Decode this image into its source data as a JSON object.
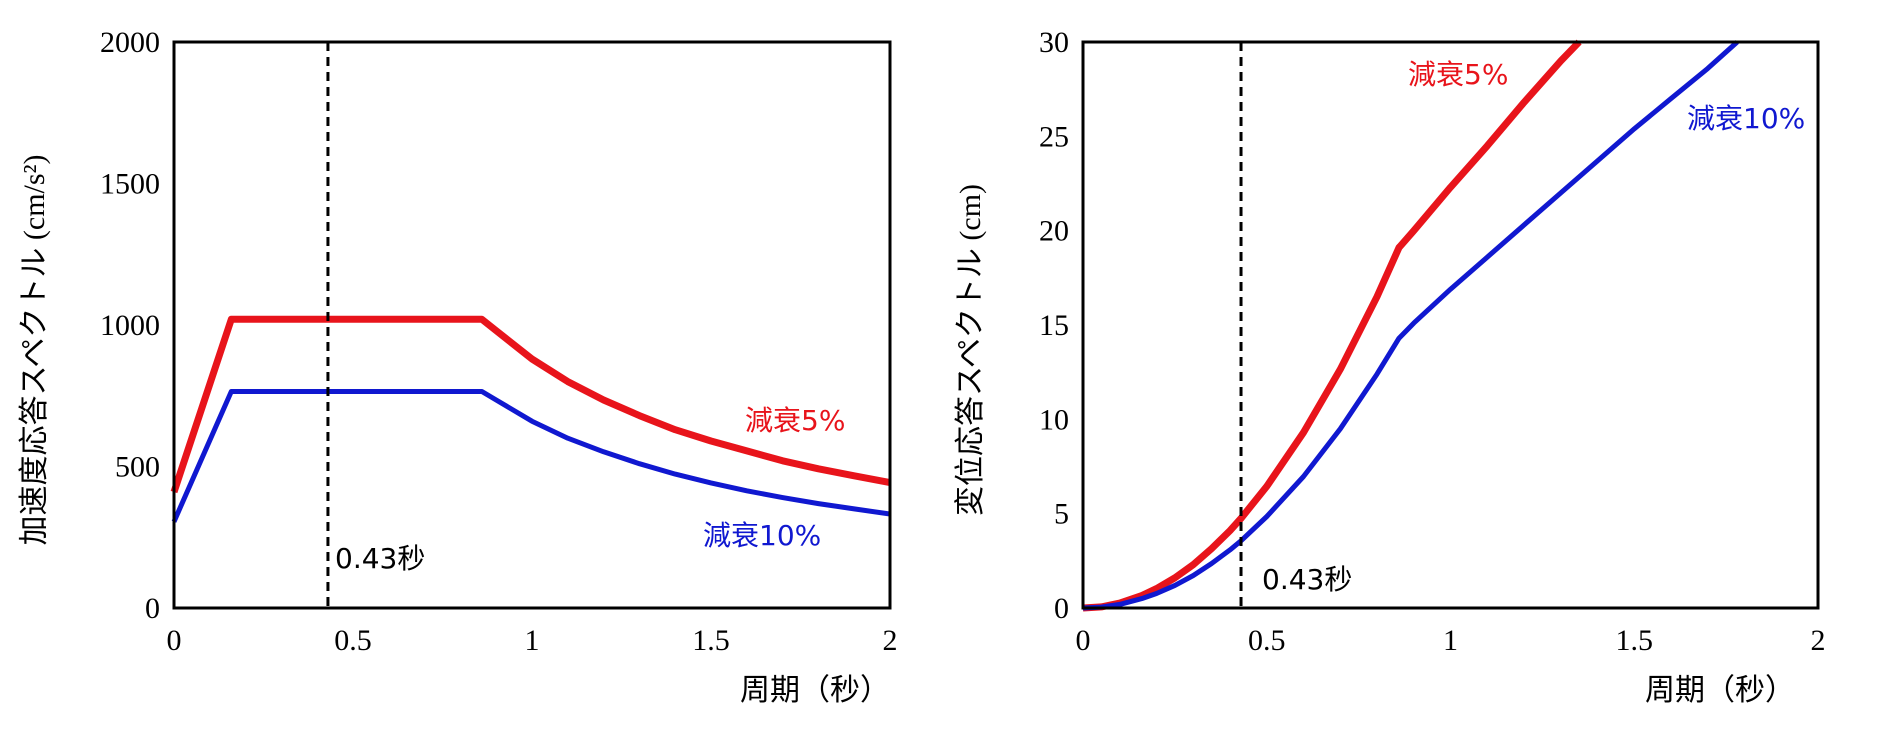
{
  "colors": {
    "red": "#e8141b",
    "blue": "#1018d0",
    "black": "#000000"
  },
  "chart_data": [
    {
      "type": "line",
      "title": "",
      "xlabel": "周期（秒）",
      "ylabel": "加速度応答スペクトル (cm/s²)",
      "xlim": [
        0,
        2
      ],
      "ylim": [
        0,
        2000
      ],
      "xticks": [
        0,
        0.5,
        1,
        1.5,
        2
      ],
      "xtick_labels": [
        "0",
        "0.5",
        "1",
        "1.5",
        "2"
      ],
      "yticks": [
        0,
        500,
        1000,
        1500,
        2000
      ],
      "ytick_labels": [
        "0",
        "500",
        "1000",
        "1500",
        "2000"
      ],
      "grid": false,
      "series": [
        {
          "name": "減衰5%",
          "color": "#e8141b",
          "points": [
            [
              0,
              410
            ],
            [
              0.16,
              1020
            ],
            [
              0.86,
              1020
            ],
            [
              0.9,
              980
            ],
            [
              1.0,
              880
            ],
            [
              1.1,
              800
            ],
            [
              1.2,
              735
            ],
            [
              1.3,
              680
            ],
            [
              1.4,
              630
            ],
            [
              1.5,
              590
            ],
            [
              1.6,
              555
            ],
            [
              1.7,
              520
            ],
            [
              1.8,
              492
            ],
            [
              1.9,
              467
            ],
            [
              2.0,
              443
            ]
          ]
        },
        {
          "name": "減衰10%",
          "color": "#1018d0",
          "points": [
            [
              0,
              305
            ],
            [
              0.16,
              765
            ],
            [
              0.86,
              765
            ],
            [
              0.9,
              735
            ],
            [
              1.0,
              660
            ],
            [
              1.1,
              600
            ],
            [
              1.2,
              552
            ],
            [
              1.3,
              510
            ],
            [
              1.4,
              473
            ],
            [
              1.5,
              442
            ],
            [
              1.6,
              414
            ],
            [
              1.7,
              390
            ],
            [
              1.8,
              369
            ],
            [
              1.9,
              350
            ],
            [
              2.0,
              332
            ]
          ]
        }
      ],
      "reference_line": {
        "x": 0.43,
        "label": "0.43秒"
      },
      "annotations": [
        {
          "text": "減衰5%",
          "color": "#e8141b"
        },
        {
          "text": "減衰10%",
          "color": "#1018d0"
        }
      ]
    },
    {
      "type": "line",
      "title": "",
      "xlabel": "周期（秒）",
      "ylabel": "変位応答スペクトル (cm)",
      "xlim": [
        0,
        2
      ],
      "ylim": [
        0,
        30
      ],
      "xticks": [
        0,
        0.5,
        1,
        1.5,
        2
      ],
      "xtick_labels": [
        "0",
        "0.5",
        "1",
        "1.5",
        "2"
      ],
      "yticks": [
        0,
        5,
        10,
        15,
        20,
        25,
        30
      ],
      "ytick_labels": [
        "0",
        "5",
        "10",
        "15",
        "20",
        "25",
        "30"
      ],
      "grid": false,
      "series": [
        {
          "name": "減衰5%",
          "color": "#e8141b",
          "points": [
            [
              0,
              0
            ],
            [
              0.05,
              0.06
            ],
            [
              0.1,
              0.26
            ],
            [
              0.16,
              0.66
            ],
            [
              0.2,
              1.03
            ],
            [
              0.25,
              1.6
            ],
            [
              0.3,
              2.3
            ],
            [
              0.35,
              3.15
            ],
            [
              0.4,
              4.1
            ],
            [
              0.43,
              4.75
            ],
            [
              0.5,
              6.45
            ],
            [
              0.6,
              9.3
            ],
            [
              0.7,
              12.65
            ],
            [
              0.8,
              16.5
            ],
            [
              0.86,
              19.1
            ],
            [
              0.9,
              20.0
            ],
            [
              1.0,
              22.3
            ],
            [
              1.1,
              24.5
            ],
            [
              1.2,
              26.8
            ],
            [
              1.3,
              29.0
            ],
            [
              1.35,
              30.0
            ]
          ]
        },
        {
          "name": "減衰10%",
          "color": "#1018d0",
          "points": [
            [
              0,
              0
            ],
            [
              0.05,
              0.05
            ],
            [
              0.1,
              0.19
            ],
            [
              0.16,
              0.5
            ],
            [
              0.2,
              0.77
            ],
            [
              0.25,
              1.2
            ],
            [
              0.3,
              1.72
            ],
            [
              0.35,
              2.36
            ],
            [
              0.4,
              3.08
            ],
            [
              0.43,
              3.56
            ],
            [
              0.5,
              4.85
            ],
            [
              0.6,
              6.97
            ],
            [
              0.7,
              9.5
            ],
            [
              0.8,
              12.4
            ],
            [
              0.86,
              14.3
            ],
            [
              0.9,
              15.1
            ],
            [
              1.0,
              16.9
            ],
            [
              1.1,
              18.6
            ],
            [
              1.2,
              20.3
            ],
            [
              1.3,
              22.0
            ],
            [
              1.4,
              23.7
            ],
            [
              1.5,
              25.4
            ],
            [
              1.6,
              27.0
            ],
            [
              1.7,
              28.6
            ],
            [
              1.78,
              30.0
            ]
          ]
        }
      ],
      "reference_line": {
        "x": 0.43,
        "label": "0.43秒"
      },
      "annotations": [
        {
          "text": "減衰5%",
          "color": "#e8141b"
        },
        {
          "text": "減衰10%",
          "color": "#1018d0"
        }
      ]
    }
  ]
}
